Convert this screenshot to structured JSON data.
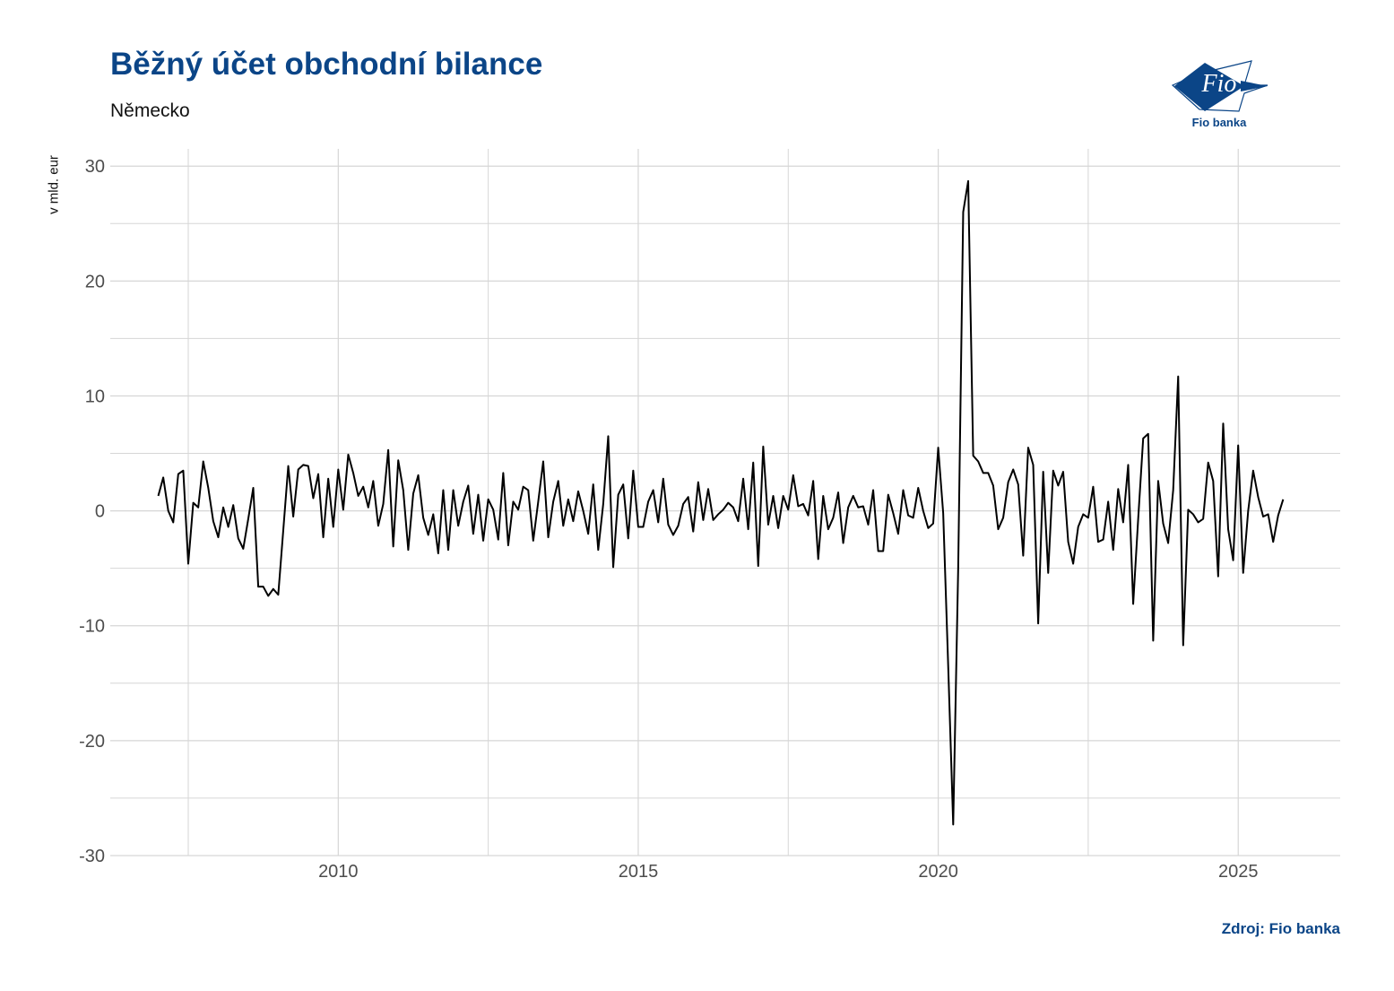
{
  "header": {
    "title": "Běžný účet obchodní bilance",
    "subtitle": "Německo",
    "logo_text": "Fio banka",
    "logo_mark": "Fio"
  },
  "footer": {
    "source": "Zdroj: Fio banka"
  },
  "colors": {
    "brand": "#0b4587",
    "line": "#000000",
    "grid": "#d6d6d6"
  },
  "chart_data": {
    "type": "line",
    "title": "Běžný účet obchodní bilance",
    "subtitle": "Německo",
    "xlabel": "",
    "ylabel": "v mld. eur",
    "xlim": [
      2006.2,
      2026.7
    ],
    "ylim": [
      -30,
      31.5
    ],
    "x_ticks": [
      2010,
      2015,
      2020,
      2025
    ],
    "y_ticks": [
      -30,
      -20,
      -10,
      0,
      10,
      20,
      30
    ],
    "grid": true,
    "legend": "none",
    "series": [
      {
        "x_start": 2007.0,
        "x_step": 0.08333,
        "values": [
          1.3,
          2.9,
          0.0,
          -1.0,
          3.2,
          3.5,
          -4.6,
          0.7,
          0.3,
          4.3,
          2.0,
          -0.9,
          -2.3,
          0.3,
          -1.4,
          0.5,
          -2.4,
          -3.3,
          -0.7,
          2.0,
          -6.6,
          -6.6,
          -7.4,
          -6.8,
          -7.3,
          -1.7,
          3.9,
          -0.5,
          3.6,
          4.0,
          3.9,
          1.1,
          3.2,
          -2.3,
          2.8,
          -1.4,
          3.6,
          0.1,
          4.9,
          3.3,
          1.3,
          2.1,
          0.3,
          2.6,
          -1.3,
          0.6,
          5.3,
          -3.1,
          4.4,
          1.8,
          -3.4,
          1.5,
          3.1,
          -0.6,
          -2.1,
          -0.3,
          -3.7,
          1.8,
          -3.4,
          1.8,
          -1.3,
          0.8,
          2.2,
          -2.0,
          1.4,
          -2.6,
          1.0,
          0.1,
          -2.5,
          3.3,
          -3.0,
          0.8,
          0.1,
          2.1,
          1.8,
          -2.6,
          0.8,
          4.3,
          -2.3,
          0.8,
          2.6,
          -1.3,
          1.0,
          -0.9,
          1.7,
          0.0,
          -2.0,
          2.3,
          -3.4,
          0.6,
          6.5,
          -4.9,
          1.4,
          2.3,
          -2.4,
          3.5,
          -1.4,
          -1.4,
          0.8,
          1.8,
          -1.0,
          2.8,
          -1.2,
          -2.1,
          -1.3,
          0.6,
          1.2,
          -1.8,
          2.5,
          -0.8,
          1.9,
          -0.8,
          -0.3,
          0.1,
          0.7,
          0.3,
          -0.9,
          2.8,
          -1.6,
          4.2,
          -4.8,
          5.6,
          -1.2,
          1.3,
          -1.5,
          1.3,
          0.1,
          3.1,
          0.4,
          0.6,
          -0.4,
          2.6,
          -4.2,
          1.3,
          -1.6,
          -0.6,
          1.6,
          -2.8,
          0.3,
          1.3,
          0.3,
          0.4,
          -1.2,
          1.8,
          -3.5,
          -3.5,
          1.4,
          -0.2,
          -2.0,
          1.8,
          -0.4,
          -0.6,
          2.0,
          0.0,
          -1.5,
          -1.1,
          5.5,
          -0.2,
          -13.5,
          -27.3,
          -5.0,
          26.0,
          28.7,
          4.8,
          4.3,
          3.3,
          3.3,
          2.2,
          -1.6,
          -0.6,
          2.5,
          3.6,
          2.3,
          -3.9,
          5.5,
          4.0,
          -9.8,
          3.4,
          -5.4,
          3.5,
          2.2,
          3.4,
          -2.7,
          -4.6,
          -1.4,
          -0.3,
          -0.6,
          2.1,
          -2.7,
          -2.5,
          0.8,
          -3.4,
          1.9,
          -1.0,
          4.0,
          -8.1,
          -0.7,
          6.3,
          6.7,
          -11.3,
          2.6,
          -1.1,
          -2.8,
          1.8,
          11.7,
          -11.7,
          0.1,
          -0.3,
          -1.0,
          -0.7,
          4.2,
          2.6,
          -5.7,
          7.6,
          -1.6,
          -4.3,
          5.7,
          -5.4,
          0.0,
          3.5,
          1.2,
          -0.5,
          -0.3,
          -2.7,
          -0.4,
          1.0
        ]
      }
    ]
  }
}
